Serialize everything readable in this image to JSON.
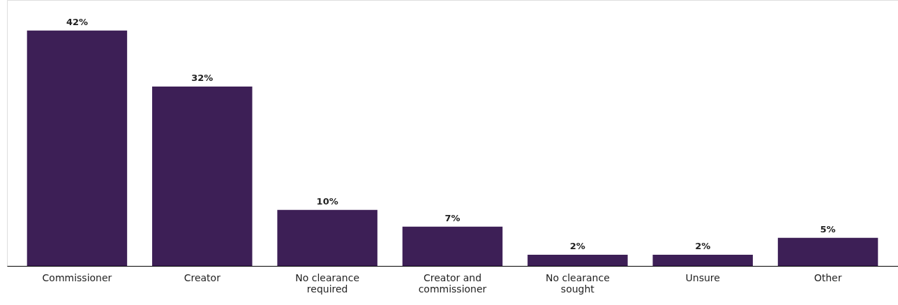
{
  "chart_data": {
    "type": "bar",
    "categories": [
      "Commissioner",
      "Creator",
      "No clearance required",
      "Creator and commissioner",
      "No clearance sought",
      "Unsure",
      "Other"
    ],
    "values": [
      42,
      32,
      10,
      7,
      2,
      2,
      5
    ],
    "value_labels": [
      "42%",
      "32%",
      "10%",
      "7%",
      "2%",
      "2%",
      "5%"
    ],
    "color": "#3d1f56",
    "grid": false
  }
}
